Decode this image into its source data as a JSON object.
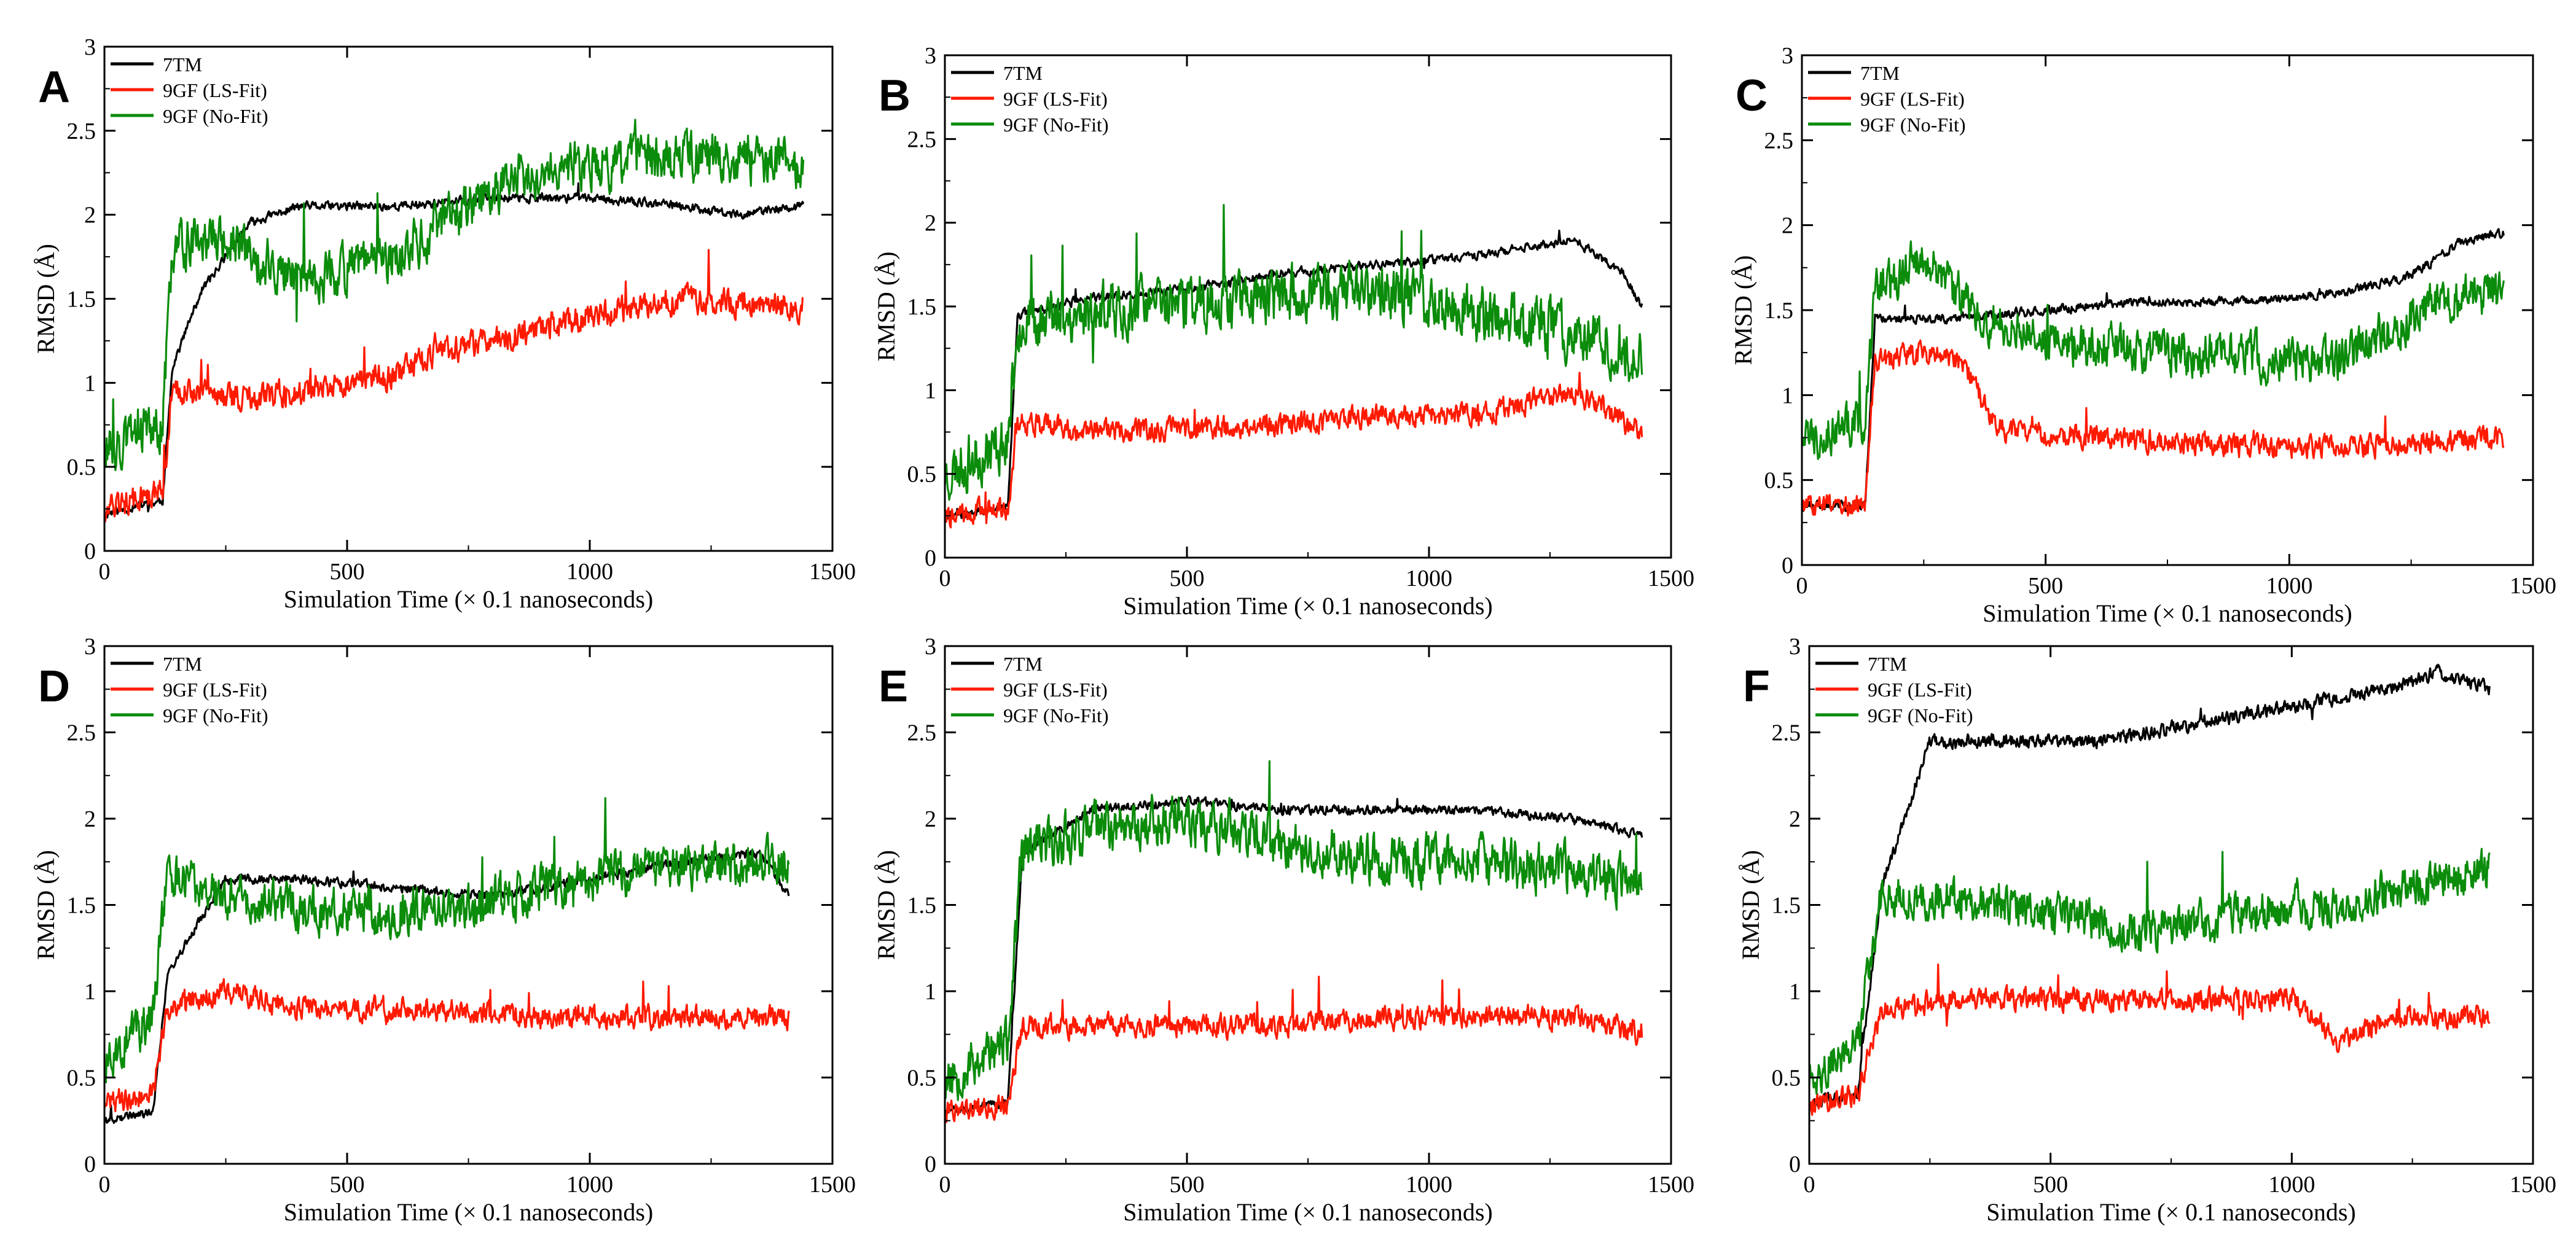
{
  "figure": {
    "panel_count": 6,
    "colors": {
      "7TM": "#000000",
      "9GF (LS-Fit)": "#ff1a00",
      "9GF (No-Fit)": "#0b8c0b"
    }
  },
  "chart_data": [
    {
      "panel": "A",
      "type": "line",
      "xlabel": "Simulation Time (× 0.1 nanoseconds)",
      "ylabel": "RMSD (Å)",
      "xlim": [
        0,
        1500
      ],
      "ylim": [
        0,
        3
      ],
      "xticks": [
        "0",
        "500",
        "1000",
        "1500"
      ],
      "yticks": [
        "0",
        "0.5",
        "1",
        "1.5",
        "2",
        "2.5",
        "3"
      ],
      "legend_location": "top-left",
      "grid": false,
      "series": [
        {
          "name": "7TM",
          "color": "#000000",
          "noise": 0.04,
          "seed": 11,
          "x": [
            0,
            120,
            140,
            200,
            300,
            400,
            600,
            800,
            1000,
            1200,
            1300,
            1440
          ],
          "y": [
            0.22,
            0.3,
            1.1,
            1.55,
            1.95,
            2.05,
            2.05,
            2.1,
            2.1,
            2.05,
            2.0,
            2.05
          ]
        },
        {
          "name": "9GF (LS-Fit)",
          "color": "#ff1a00",
          "noise": 0.12,
          "seed": 12,
          "x": [
            0,
            120,
            140,
            300,
            500,
            600,
            700,
            800,
            1000,
            1200,
            1440
          ],
          "y": [
            0.25,
            0.35,
            0.95,
            0.9,
            1.0,
            1.05,
            1.2,
            1.25,
            1.4,
            1.5,
            1.45
          ]
        },
        {
          "name": "9GF (No-Fit)",
          "color": "#0b8c0b",
          "noise": 0.22,
          "seed": 13,
          "x": [
            0,
            120,
            140,
            200,
            400,
            600,
            800,
            900,
            1000,
            1200,
            1440
          ],
          "y": [
            0.6,
            0.75,
            1.8,
            1.9,
            1.6,
            1.75,
            2.15,
            2.3,
            2.3,
            2.35,
            2.3
          ]
        }
      ]
    },
    {
      "panel": "B",
      "type": "line",
      "xlabel": "Simulation Time (× 0.1 nanoseconds)",
      "ylabel": "RMSD (Å)",
      "xlim": [
        0,
        1500
      ],
      "ylim": [
        0,
        3
      ],
      "xticks": [
        "0",
        "500",
        "1000",
        "1500"
      ],
      "yticks": [
        "0",
        "0.5",
        "1",
        "1.5",
        "2",
        "2.5",
        "3"
      ],
      "legend_location": "top-left",
      "grid": false,
      "series": [
        {
          "name": "7TM",
          "color": "#000000",
          "noise": 0.04,
          "seed": 21,
          "x": [
            0,
            130,
            150,
            300,
            500,
            700,
            900,
            1100,
            1300,
            1400,
            1440
          ],
          "y": [
            0.25,
            0.3,
            1.45,
            1.55,
            1.6,
            1.7,
            1.75,
            1.8,
            1.9,
            1.7,
            1.5
          ]
        },
        {
          "name": "9GF (LS-Fit)",
          "color": "#ff1a00",
          "noise": 0.1,
          "seed": 22,
          "x": [
            0,
            130,
            150,
            400,
            700,
            900,
            1100,
            1300,
            1440
          ],
          "y": [
            0.25,
            0.3,
            0.8,
            0.75,
            0.8,
            0.85,
            0.85,
            1.0,
            0.75
          ]
        },
        {
          "name": "9GF (No-Fit)",
          "color": "#0b8c0b",
          "noise": 0.25,
          "seed": 23,
          "x": [
            0,
            130,
            150,
            400,
            600,
            900,
            1100,
            1300,
            1440
          ],
          "y": [
            0.5,
            0.7,
            1.4,
            1.5,
            1.55,
            1.6,
            1.45,
            1.35,
            1.2
          ]
        }
      ]
    },
    {
      "panel": "C",
      "type": "line",
      "xlabel": "Simulation Time (× 0.1 nanoseconds)",
      "ylabel": "RMSD (Å)",
      "xlim": [
        0,
        1500
      ],
      "ylim": [
        0,
        3
      ],
      "xticks": [
        "0",
        "500",
        "1000",
        "1500"
      ],
      "yticks": [
        "0",
        "0.5",
        "1",
        "1.5",
        "2",
        "2.5",
        "3"
      ],
      "legend_location": "top-left",
      "grid": false,
      "series": [
        {
          "name": "7TM",
          "color": "#000000",
          "noise": 0.04,
          "seed": 31,
          "x": [
            0,
            130,
            150,
            300,
            500,
            700,
            900,
            1100,
            1250,
            1350,
            1440
          ],
          "y": [
            0.35,
            0.35,
            1.45,
            1.45,
            1.5,
            1.55,
            1.55,
            1.6,
            1.7,
            1.9,
            1.95
          ]
        },
        {
          "name": "9GF (LS-Fit)",
          "color": "#ff1a00",
          "noise": 0.1,
          "seed": 32,
          "x": [
            0,
            130,
            150,
            250,
            330,
            400,
            600,
            900,
            1200,
            1440
          ],
          "y": [
            0.35,
            0.35,
            1.2,
            1.25,
            1.2,
            0.8,
            0.75,
            0.7,
            0.7,
            0.75
          ]
        },
        {
          "name": "9GF (No-Fit)",
          "color": "#0b8c0b",
          "noise": 0.2,
          "seed": 33,
          "x": [
            0,
            130,
            150,
            250,
            350,
            500,
            800,
            1100,
            1300,
            1440
          ],
          "y": [
            0.75,
            0.85,
            1.6,
            1.8,
            1.5,
            1.3,
            1.25,
            1.2,
            1.55,
            1.6
          ]
        }
      ]
    },
    {
      "panel": "D",
      "type": "line",
      "xlabel": "Simulation Time (× 0.1 nanoseconds)",
      "ylabel": "RMSD (Å)",
      "xlim": [
        0,
        1500
      ],
      "ylim": [
        0,
        3
      ],
      "xticks": [
        "0",
        "500",
        "1000",
        "1500"
      ],
      "yticks": [
        "0",
        "0.5",
        "1",
        "1.5",
        "2",
        "2.5",
        "3"
      ],
      "legend_location": "top-left",
      "grid": false,
      "series": [
        {
          "name": "7TM",
          "color": "#000000",
          "noise": 0.04,
          "seed": 41,
          "x": [
            0,
            100,
            130,
            250,
            400,
            600,
            800,
            1000,
            1200,
            1350,
            1410
          ],
          "y": [
            0.25,
            0.3,
            1.1,
            1.65,
            1.65,
            1.6,
            1.55,
            1.65,
            1.75,
            1.8,
            1.55
          ]
        },
        {
          "name": "9GF (LS-Fit)",
          "color": "#ff1a00",
          "noise": 0.1,
          "seed": 42,
          "x": [
            0,
            100,
            130,
            250,
            400,
            600,
            900,
            1200,
            1410
          ],
          "y": [
            0.35,
            0.4,
            0.9,
            1.0,
            0.9,
            0.9,
            0.85,
            0.85,
            0.85
          ]
        },
        {
          "name": "9GF (No-Fit)",
          "color": "#0b8c0b",
          "noise": 0.2,
          "seed": 43,
          "x": [
            0,
            100,
            130,
            300,
            500,
            700,
            900,
            1100,
            1300,
            1410
          ],
          "y": [
            0.6,
            0.85,
            1.7,
            1.5,
            1.45,
            1.45,
            1.6,
            1.7,
            1.75,
            1.75
          ]
        }
      ]
    },
    {
      "panel": "E",
      "type": "line",
      "xlabel": "Simulation Time (× 0.1 nanoseconds)",
      "ylabel": "RMSD (Å)",
      "xlim": [
        0,
        1500
      ],
      "ylim": [
        0,
        3
      ],
      "xticks": [
        "0",
        "500",
        "1000",
        "1500"
      ],
      "yticks": [
        "0",
        "0.5",
        "1",
        "1.5",
        "2",
        "2.5",
        "3"
      ],
      "legend_location": "top-left",
      "grid": false,
      "series": [
        {
          "name": "7TM",
          "color": "#000000",
          "noise": 0.04,
          "seed": 51,
          "x": [
            0,
            130,
            160,
            300,
            500,
            700,
            900,
            1100,
            1300,
            1440
          ],
          "y": [
            0.3,
            0.35,
            1.8,
            2.05,
            2.1,
            2.05,
            2.05,
            2.05,
            2.0,
            1.9
          ]
        },
        {
          "name": "9GF (LS-Fit)",
          "color": "#ff1a00",
          "noise": 0.1,
          "seed": 52,
          "x": [
            0,
            130,
            160,
            400,
            700,
            900,
            1100,
            1300,
            1440
          ],
          "y": [
            0.3,
            0.35,
            0.8,
            0.8,
            0.8,
            0.85,
            0.85,
            0.85,
            0.75
          ]
        },
        {
          "name": "9GF (No-Fit)",
          "color": "#0b8c0b",
          "noise": 0.22,
          "seed": 53,
          "x": [
            0,
            130,
            160,
            300,
            500,
            700,
            900,
            1100,
            1300,
            1440
          ],
          "y": [
            0.5,
            0.7,
            1.8,
            1.95,
            2.0,
            1.85,
            1.75,
            1.75,
            1.7,
            1.6
          ]
        }
      ]
    },
    {
      "panel": "F",
      "type": "line",
      "xlabel": "Simulation Time (× 0.1 nanoseconds)",
      "ylabel": "RMSD (Å)",
      "xlim": [
        0,
        1500
      ],
      "ylim": [
        0,
        3
      ],
      "xticks": [
        "0",
        "500",
        "1000",
        "1500"
      ],
      "yticks": [
        "0",
        "0.5",
        "1",
        "1.5",
        "2",
        "2.5",
        "3"
      ],
      "legend_location": "top-left",
      "grid": false,
      "series": [
        {
          "name": "7TM",
          "color": "#000000",
          "noise": 0.06,
          "seed": 61,
          "x": [
            0,
            100,
            150,
            250,
            400,
            600,
            800,
            1000,
            1200,
            1300,
            1410
          ],
          "y": [
            0.35,
            0.4,
            1.6,
            2.45,
            2.45,
            2.45,
            2.55,
            2.65,
            2.75,
            2.85,
            2.75
          ]
        },
        {
          "name": "9GF (LS-Fit)",
          "color": "#ff1a00",
          "noise": 0.1,
          "seed": 62,
          "x": [
            0,
            100,
            150,
            300,
            500,
            800,
            1000,
            1100,
            1200,
            1410
          ],
          "y": [
            0.35,
            0.4,
            0.9,
            0.95,
            0.95,
            0.95,
            0.95,
            0.7,
            0.85,
            0.85
          ]
        },
        {
          "name": "9GF (No-Fit)",
          "color": "#0b8c0b",
          "noise": 0.18,
          "seed": 63,
          "x": [
            0,
            100,
            150,
            300,
            500,
            700,
            900,
            1100,
            1300,
            1410
          ],
          "y": [
            0.5,
            0.7,
            1.55,
            1.55,
            1.45,
            1.35,
            1.45,
            1.5,
            1.65,
            1.7
          ]
        }
      ]
    }
  ]
}
